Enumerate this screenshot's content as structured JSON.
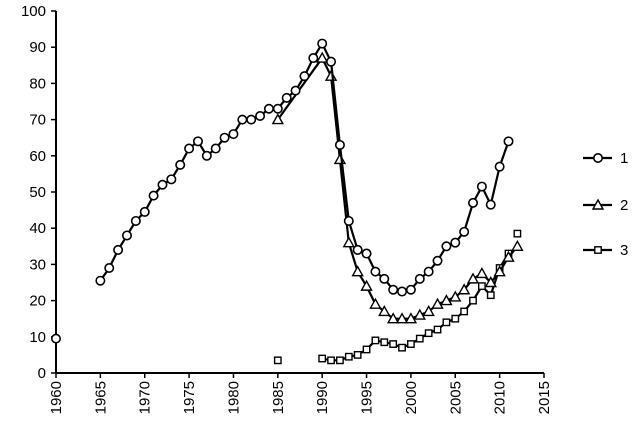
{
  "chart_data": {
    "type": "line",
    "title": "",
    "xlabel": "",
    "ylabel": "",
    "xlim": [
      1960,
      2015
    ],
    "ylim": [
      0,
      100
    ],
    "x_ticks": [
      "1960",
      "1965",
      "1970",
      "1975",
      "1980",
      "1985",
      "1990",
      "1995",
      "2000",
      "2005",
      "2010",
      "2015"
    ],
    "y_ticks": [
      "0",
      "10",
      "20",
      "30",
      "40",
      "50",
      "60",
      "70",
      "80",
      "90",
      "100"
    ],
    "grid": false,
    "legend_position": "right",
    "series": [
      {
        "name": "1",
        "marker": "circle",
        "points": [
          [
            1960,
            9.5
          ],
          [
            1965,
            25.5
          ],
          [
            1966,
            29
          ],
          [
            1967,
            34
          ],
          [
            1968,
            38
          ],
          [
            1969,
            42
          ],
          [
            1970,
            44.5
          ],
          [
            1971,
            49
          ],
          [
            1972,
            52
          ],
          [
            1973,
            53.5
          ],
          [
            1974,
            57.5
          ],
          [
            1975,
            62
          ],
          [
            1976,
            64
          ],
          [
            1977,
            60
          ],
          [
            1978,
            62
          ],
          [
            1979,
            65
          ],
          [
            1980,
            66
          ],
          [
            1981,
            70
          ],
          [
            1982,
            70
          ],
          [
            1983,
            71
          ],
          [
            1984,
            73
          ],
          [
            1985,
            73
          ],
          [
            1986,
            76
          ],
          [
            1987,
            78
          ],
          [
            1988,
            82
          ],
          [
            1989,
            87
          ],
          [
            1990,
            91
          ],
          [
            1991,
            86
          ],
          [
            1992,
            63
          ],
          [
            1993,
            42
          ],
          [
            1994,
            34
          ],
          [
            1995,
            33
          ],
          [
            1996,
            28
          ],
          [
            1997,
            26
          ],
          [
            1998,
            23
          ],
          [
            1999,
            22.5
          ],
          [
            2000,
            23
          ],
          [
            2001,
            26
          ],
          [
            2002,
            28
          ],
          [
            2003,
            31
          ],
          [
            2004,
            35
          ],
          [
            2005,
            36
          ],
          [
            2006,
            39
          ],
          [
            2007,
            47
          ],
          [
            2008,
            51.5
          ],
          [
            2009,
            46.5
          ],
          [
            2010,
            57
          ],
          [
            2011,
            64
          ]
        ]
      },
      {
        "name": "2",
        "marker": "triangle",
        "points": [
          [
            1985,
            70
          ],
          [
            1990,
            87
          ],
          [
            1991,
            82
          ],
          [
            1992,
            59
          ],
          [
            1993,
            36
          ],
          [
            1994,
            28
          ],
          [
            1995,
            24
          ],
          [
            1996,
            19
          ],
          [
            1997,
            17
          ],
          [
            1998,
            15
          ],
          [
            1999,
            15
          ],
          [
            2000,
            15
          ],
          [
            2001,
            16
          ],
          [
            2002,
            17
          ],
          [
            2003,
            19
          ],
          [
            2004,
            20
          ],
          [
            2005,
            21
          ],
          [
            2006,
            23
          ],
          [
            2007,
            26
          ],
          [
            2008,
            27.5
          ],
          [
            2009,
            25
          ],
          [
            2010,
            28
          ],
          [
            2011,
            32
          ],
          [
            2012,
            35
          ]
        ]
      },
      {
        "name": "3",
        "marker": "square",
        "points": [
          [
            1985,
            3.5
          ],
          [
            1990,
            4
          ],
          [
            1991,
            3.5
          ],
          [
            1992,
            3.5
          ],
          [
            1993,
            4.5
          ],
          [
            1994,
            5
          ],
          [
            1995,
            6.5
          ],
          [
            1996,
            9
          ],
          [
            1997,
            8.5
          ],
          [
            1998,
            8
          ],
          [
            1999,
            7
          ],
          [
            2000,
            8
          ],
          [
            2001,
            9.5
          ],
          [
            2002,
            11
          ],
          [
            2003,
            12
          ],
          [
            2004,
            14
          ],
          [
            2005,
            15
          ],
          [
            2006,
            17
          ],
          [
            2007,
            20
          ],
          [
            2008,
            24
          ],
          [
            2009,
            21.5
          ],
          [
            2010,
            29
          ],
          [
            2011,
            33
          ],
          [
            2012,
            38.5
          ]
        ],
        "segments": [
          [
            0,
            0
          ],
          [
            1,
            22
          ]
        ]
      }
    ]
  }
}
